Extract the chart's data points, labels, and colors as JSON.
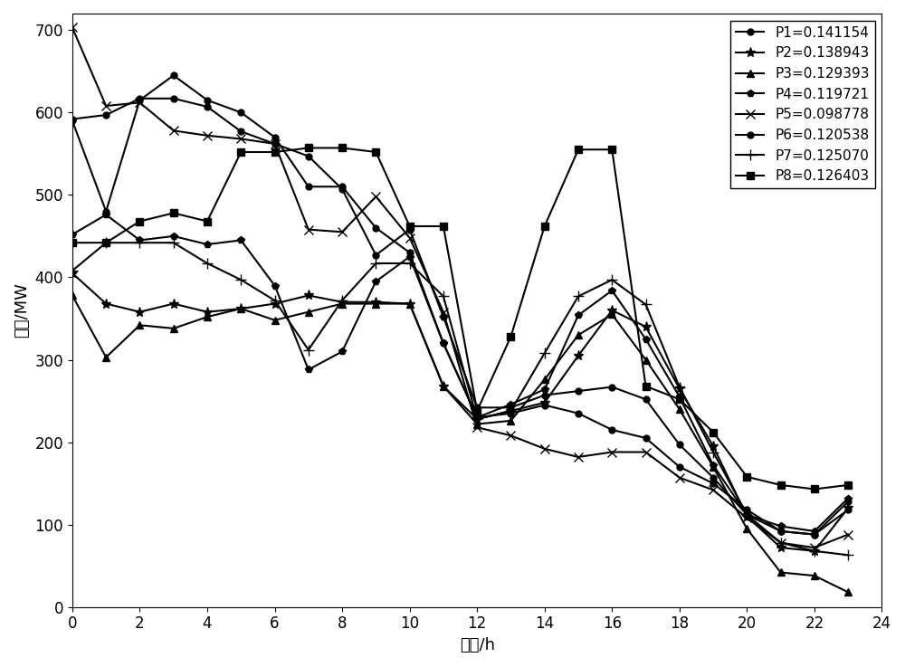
{
  "xlabel": "时刻/h",
  "ylabel": "功率/MW",
  "xlim": [
    0,
    24
  ],
  "ylim": [
    0,
    720
  ],
  "xticks": [
    0,
    2,
    4,
    6,
    8,
    10,
    12,
    14,
    16,
    18,
    20,
    22,
    24
  ],
  "yticks": [
    0,
    100,
    200,
    300,
    400,
    500,
    600,
    700
  ],
  "series": [
    {
      "label": "P1=0.141154",
      "marker": "o",
      "markersize": 5,
      "x": [
        0,
        1,
        2,
        3,
        4,
        5,
        6,
        7,
        8,
        9,
        10,
        11,
        12,
        13,
        14,
        15,
        16,
        17,
        18,
        19,
        20,
        21,
        22,
        23
      ],
      "y": [
        590,
        480,
        615,
        645,
        615,
        600,
        570,
        510,
        510,
        460,
        430,
        320,
        230,
        235,
        245,
        235,
        215,
        205,
        170,
        150,
        118,
        92,
        88,
        128
      ]
    },
    {
      "label": "P2=0.138943",
      "marker": "*",
      "markersize": 8,
      "x": [
        0,
        1,
        2,
        3,
        4,
        5,
        6,
        7,
        8,
        9,
        10,
        11,
        12,
        13,
        14,
        15,
        16,
        17,
        18,
        19,
        20,
        21,
        22,
        23
      ],
      "y": [
        405,
        368,
        358,
        368,
        358,
        362,
        368,
        378,
        370,
        370,
        368,
        268,
        228,
        238,
        248,
        305,
        360,
        340,
        265,
        195,
        110,
        72,
        68,
        120
      ]
    },
    {
      "label": "P3=0.129393",
      "marker": "^",
      "markersize": 6,
      "x": [
        0,
        1,
        2,
        3,
        4,
        5,
        6,
        7,
        8,
        9,
        10,
        11,
        12,
        13,
        14,
        15,
        16,
        17,
        18,
        19,
        20,
        21,
        22,
        23
      ],
      "y": [
        378,
        303,
        342,
        338,
        352,
        362,
        348,
        358,
        368,
        368,
        368,
        268,
        222,
        226,
        276,
        330,
        355,
        300,
        240,
        170,
        95,
        42,
        38,
        18
      ]
    },
    {
      "label": "P4=0.119721",
      "marker": "p",
      "markersize": 6,
      "x": [
        0,
        1,
        2,
        3,
        4,
        5,
        6,
        7,
        8,
        9,
        10,
        11,
        12,
        13,
        14,
        15,
        16,
        17,
        18,
        19,
        20,
        21,
        22,
        23
      ],
      "y": [
        452,
        476,
        445,
        450,
        440,
        445,
        390,
        288,
        310,
        395,
        425,
        320,
        230,
        246,
        264,
        354,
        384,
        325,
        255,
        172,
        112,
        98,
        92,
        132
      ]
    },
    {
      "label": "P5=0.098778",
      "marker": "x",
      "markersize": 7,
      "x": [
        0,
        1,
        2,
        3,
        4,
        5,
        6,
        7,
        8,
        9,
        10,
        11,
        12,
        13,
        14,
        15,
        16,
        17,
        18,
        19,
        20,
        21,
        22,
        23
      ],
      "y": [
        703,
        608,
        612,
        578,
        572,
        568,
        562,
        458,
        455,
        498,
        448,
        358,
        218,
        208,
        192,
        182,
        188,
        188,
        157,
        142,
        108,
        78,
        72,
        88
      ]
    },
    {
      "label": "P6=0.120538",
      "marker": "o",
      "markersize": 5,
      "x": [
        0,
        1,
        2,
        3,
        4,
        5,
        6,
        7,
        8,
        9,
        10,
        11,
        12,
        13,
        14,
        15,
        16,
        17,
        18,
        19,
        20,
        21,
        22,
        23
      ],
      "y": [
        592,
        597,
        617,
        617,
        607,
        577,
        562,
        547,
        507,
        427,
        458,
        352,
        242,
        242,
        257,
        262,
        267,
        252,
        197,
        157,
        112,
        92,
        88,
        118
      ]
    },
    {
      "label": "P7=0.125070",
      "marker": "+",
      "markersize": 9,
      "x": [
        0,
        1,
        2,
        3,
        4,
        5,
        6,
        7,
        8,
        9,
        10,
        11,
        12,
        13,
        14,
        15,
        16,
        17,
        18,
        19,
        20,
        21,
        22,
        23
      ],
      "y": [
        408,
        442,
        442,
        442,
        417,
        397,
        372,
        312,
        372,
        417,
        417,
        377,
        228,
        238,
        308,
        377,
        397,
        367,
        267,
        188,
        112,
        78,
        68,
        63
      ]
    },
    {
      "label": "P8=0.126403",
      "marker": "s",
      "markersize": 6,
      "x": [
        0,
        1,
        2,
        3,
        4,
        5,
        6,
        7,
        8,
        9,
        10,
        11,
        12,
        13,
        14,
        15,
        16,
        17,
        18,
        19,
        20,
        21,
        22,
        23
      ],
      "y": [
        442,
        442,
        468,
        478,
        468,
        552,
        552,
        557,
        557,
        552,
        462,
        462,
        238,
        328,
        462,
        555,
        555,
        268,
        252,
        212,
        158,
        148,
        143,
        148
      ]
    }
  ],
  "linewidth": 1.5,
  "color": "black",
  "label_fontsize": 13,
  "tick_fontsize": 12,
  "legend_fontsize": 11
}
